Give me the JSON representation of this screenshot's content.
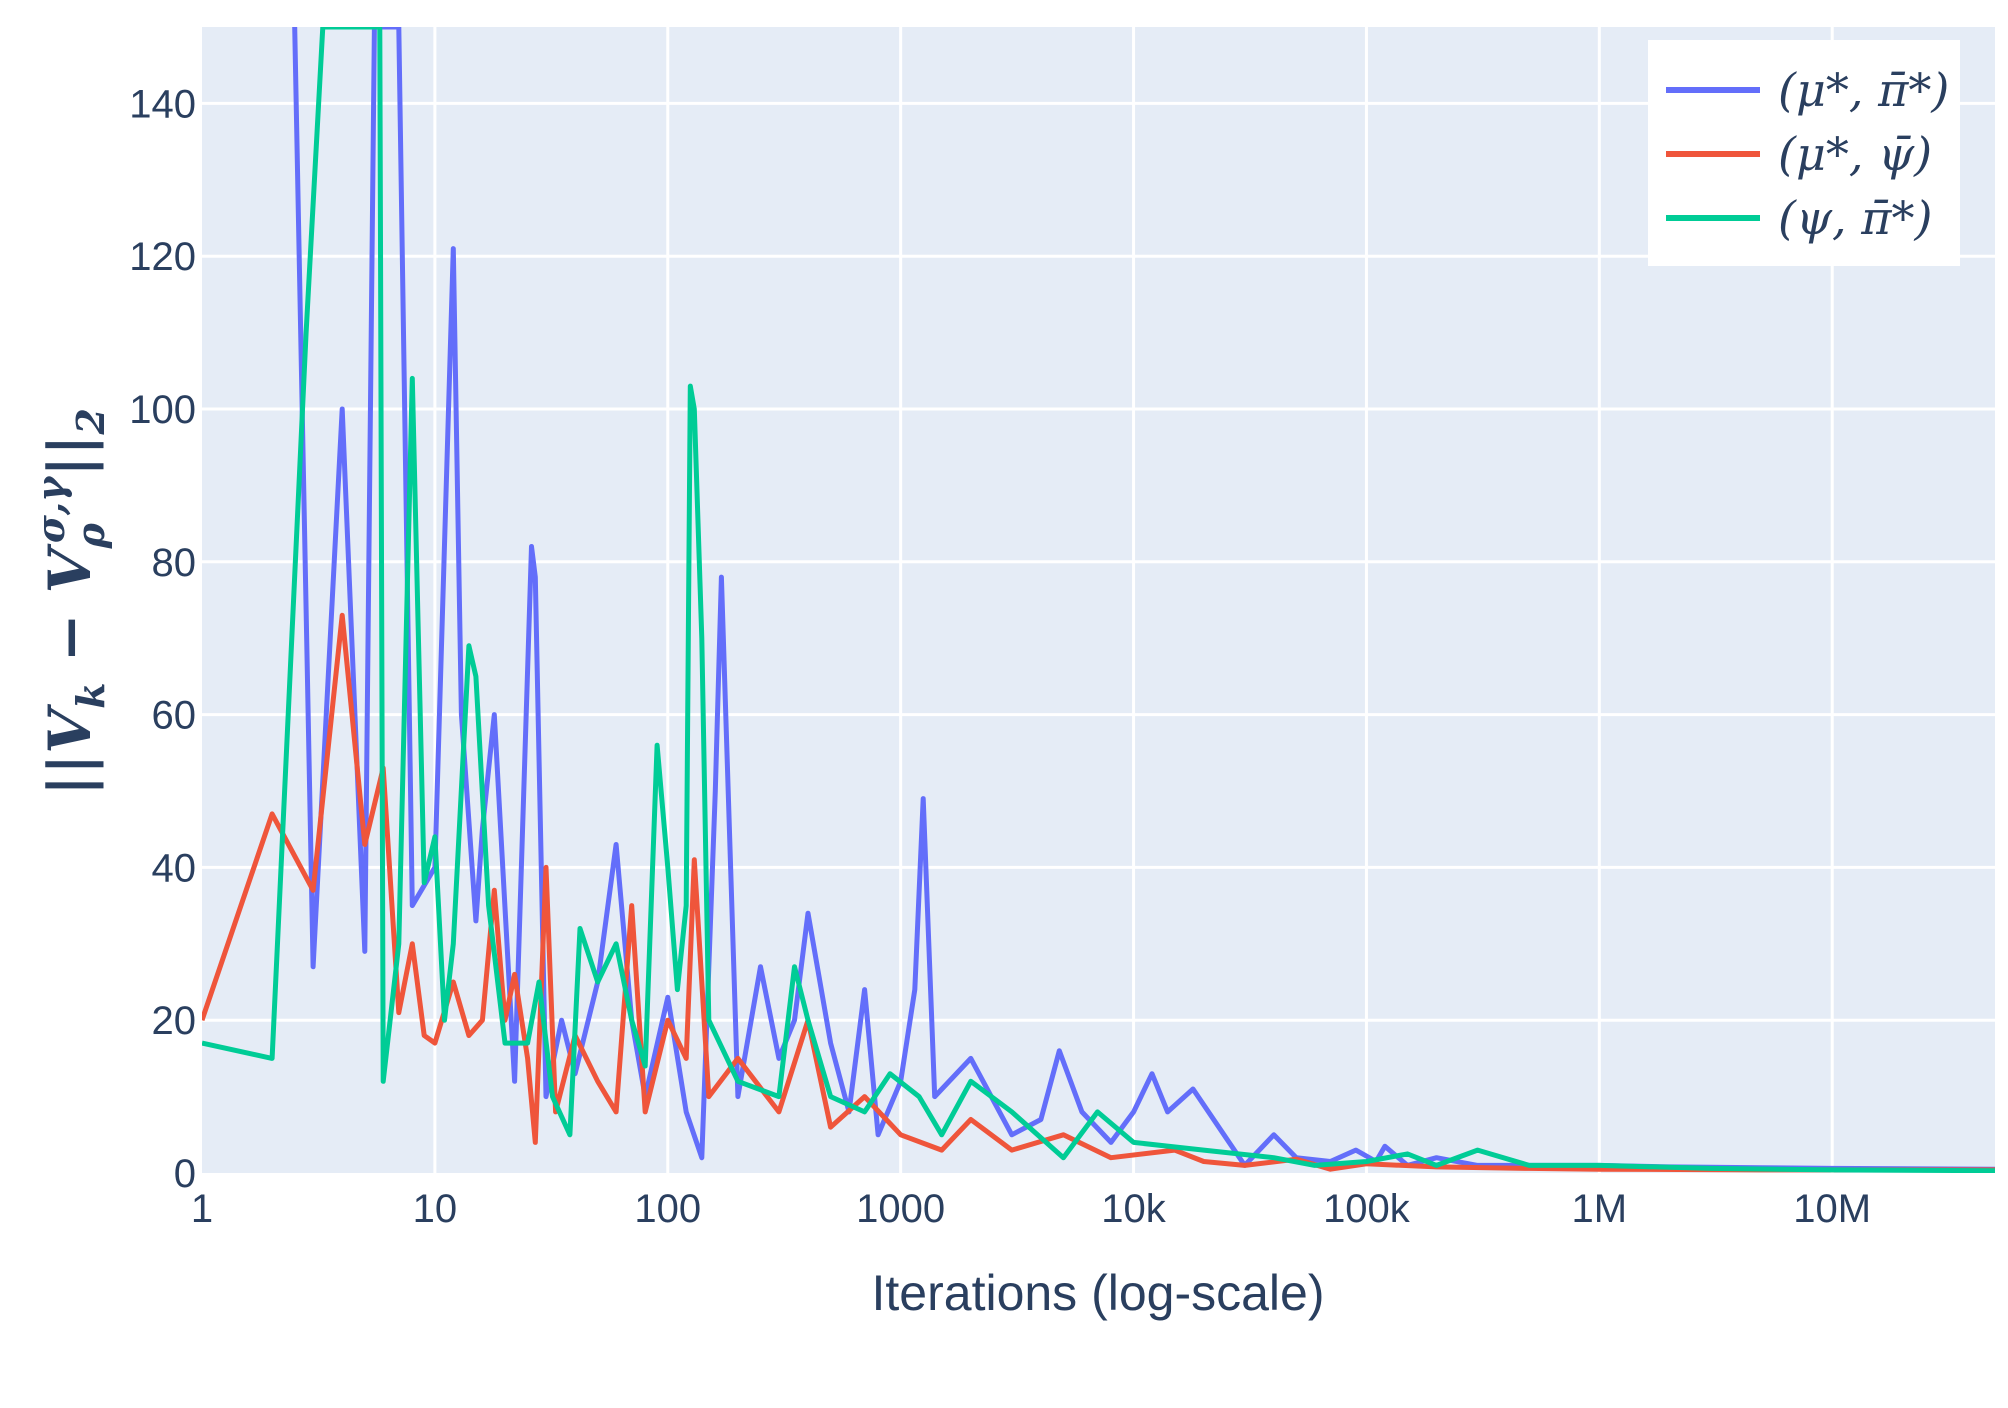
{
  "chart_data": {
    "type": "line",
    "xlabel": "Iterations (log-scale)",
    "ylabel": "||V_k − V_ρ^{σ,γ}||₂",
    "x_scale": "log",
    "xlim": [
      1,
      50000000
    ],
    "ylim": [
      0,
      150
    ],
    "x_ticks": [
      1,
      10,
      100,
      1000,
      10000,
      100000,
      1000000,
      10000000
    ],
    "x_tick_labels": [
      "1",
      "10",
      "100",
      "1000",
      "10k",
      "100k",
      "1M",
      "10M"
    ],
    "y_ticks": [
      0,
      20,
      40,
      60,
      80,
      100,
      120,
      140
    ],
    "y_tick_labels": [
      "0",
      "20",
      "40",
      "60",
      "80",
      "100",
      "120",
      "140"
    ],
    "grid": true,
    "legend_position": "top-right",
    "series": [
      {
        "name": "(μ*, π̄*)",
        "color": "#636efa",
        "points": [
          [
            2.5,
            150
          ],
          [
            3,
            27
          ],
          [
            4,
            100
          ],
          [
            5,
            29
          ],
          [
            5.5,
            150
          ],
          [
            7,
            150
          ],
          [
            8,
            35
          ],
          [
            10,
            40
          ],
          [
            12,
            121
          ],
          [
            13,
            60
          ],
          [
            15,
            33
          ],
          [
            16,
            45
          ],
          [
            18,
            60
          ],
          [
            22,
            12
          ],
          [
            26,
            82
          ],
          [
            27,
            78
          ],
          [
            30,
            10
          ],
          [
            35,
            20
          ],
          [
            40,
            13
          ],
          [
            50,
            25
          ],
          [
            60,
            43
          ],
          [
            70,
            20
          ],
          [
            80,
            10
          ],
          [
            100,
            23
          ],
          [
            120,
            8
          ],
          [
            140,
            2
          ],
          [
            160,
            50
          ],
          [
            170,
            78
          ],
          [
            200,
            10
          ],
          [
            250,
            27
          ],
          [
            300,
            15
          ],
          [
            350,
            20
          ],
          [
            400,
            34
          ],
          [
            500,
            17
          ],
          [
            600,
            8
          ],
          [
            700,
            24
          ],
          [
            800,
            5
          ],
          [
            1000,
            12
          ],
          [
            1150,
            24
          ],
          [
            1250,
            49
          ],
          [
            1400,
            10
          ],
          [
            2000,
            15
          ],
          [
            3000,
            5
          ],
          [
            4000,
            7
          ],
          [
            4800,
            16
          ],
          [
            6000,
            8
          ],
          [
            8000,
            4
          ],
          [
            10000,
            8
          ],
          [
            12000,
            13
          ],
          [
            14000,
            8
          ],
          [
            18000,
            11
          ],
          [
            30000,
            1
          ],
          [
            40000,
            5
          ],
          [
            50000,
            2
          ],
          [
            70000,
            1.5
          ],
          [
            90000,
            3
          ],
          [
            110000,
            1.5
          ],
          [
            120000,
            3.5
          ],
          [
            150000,
            1
          ],
          [
            200000,
            2
          ],
          [
            300000,
            1
          ],
          [
            500000,
            1
          ],
          [
            1000000,
            1
          ],
          [
            2000000,
            0.8
          ],
          [
            5000000,
            0.7
          ],
          [
            10000000,
            0.6
          ],
          [
            50000000,
            0.5
          ]
        ]
      },
      {
        "name": "(μ*, ψ̄)",
        "color": "#ef553b",
        "points": [
          [
            1,
            20
          ],
          [
            2,
            47
          ],
          [
            3,
            37
          ],
          [
            4,
            73
          ],
          [
            5,
            43
          ],
          [
            6,
            53
          ],
          [
            7,
            21
          ],
          [
            8,
            30
          ],
          [
            9,
            18
          ],
          [
            10,
            17
          ],
          [
            12,
            25
          ],
          [
            14,
            18
          ],
          [
            16,
            20
          ],
          [
            18,
            37
          ],
          [
            20,
            20
          ],
          [
            22,
            26
          ],
          [
            25,
            15
          ],
          [
            27,
            4
          ],
          [
            30,
            40
          ],
          [
            33,
            8
          ],
          [
            40,
            18
          ],
          [
            50,
            12
          ],
          [
            60,
            8
          ],
          [
            70,
            35
          ],
          [
            80,
            8
          ],
          [
            100,
            20
          ],
          [
            120,
            15
          ],
          [
            130,
            41
          ],
          [
            150,
            10
          ],
          [
            200,
            15
          ],
          [
            300,
            8
          ],
          [
            400,
            20
          ],
          [
            500,
            6
          ],
          [
            700,
            10
          ],
          [
            1000,
            5
          ],
          [
            1500,
            3
          ],
          [
            2000,
            7
          ],
          [
            3000,
            3
          ],
          [
            5000,
            5
          ],
          [
            8000,
            2
          ],
          [
            15000,
            3
          ],
          [
            20000,
            1.5
          ],
          [
            30000,
            1
          ],
          [
            50000,
            1.8
          ],
          [
            70000,
            0.5
          ],
          [
            100000,
            1.2
          ],
          [
            200000,
            0.8
          ],
          [
            500000,
            0.6
          ],
          [
            1000000,
            0.5
          ],
          [
            5000000,
            0.4
          ],
          [
            50000000,
            0.4
          ]
        ]
      },
      {
        "name": "(ψ, π̄*)",
        "color": "#00cc96",
        "points": [
          [
            1,
            17
          ],
          [
            2,
            15
          ],
          [
            2.8,
            110
          ],
          [
            3.3,
            150
          ],
          [
            5.8,
            150
          ],
          [
            6,
            12
          ],
          [
            7,
            30
          ],
          [
            8,
            104
          ],
          [
            9,
            38
          ],
          [
            10,
            44
          ],
          [
            11,
            20
          ],
          [
            12,
            30
          ],
          [
            14,
            69
          ],
          [
            15,
            65
          ],
          [
            17,
            35
          ],
          [
            20,
            17
          ],
          [
            25,
            17
          ],
          [
            28,
            25
          ],
          [
            32,
            10
          ],
          [
            38,
            5
          ],
          [
            42,
            32
          ],
          [
            50,
            25
          ],
          [
            60,
            30
          ],
          [
            70,
            20
          ],
          [
            80,
            14
          ],
          [
            90,
            56
          ],
          [
            100,
            40
          ],
          [
            110,
            24
          ],
          [
            120,
            35
          ],
          [
            125,
            103
          ],
          [
            130,
            100
          ],
          [
            140,
            70
          ],
          [
            150,
            20
          ],
          [
            200,
            12
          ],
          [
            300,
            10
          ],
          [
            350,
            27
          ],
          [
            400,
            20
          ],
          [
            500,
            10
          ],
          [
            700,
            8
          ],
          [
            900,
            13
          ],
          [
            1200,
            10
          ],
          [
            1500,
            5
          ],
          [
            2000,
            12
          ],
          [
            3000,
            8
          ],
          [
            5000,
            2
          ],
          [
            7000,
            8
          ],
          [
            10000,
            4
          ],
          [
            20000,
            3
          ],
          [
            40000,
            2
          ],
          [
            60000,
            1
          ],
          [
            100000,
            1.5
          ],
          [
            150000,
            2.5
          ],
          [
            200000,
            1
          ],
          [
            300000,
            3
          ],
          [
            500000,
            1
          ],
          [
            1000000,
            1
          ],
          [
            3000000,
            0.6
          ],
          [
            10000000,
            0.4
          ],
          [
            50000000,
            0.3
          ]
        ]
      }
    ]
  }
}
